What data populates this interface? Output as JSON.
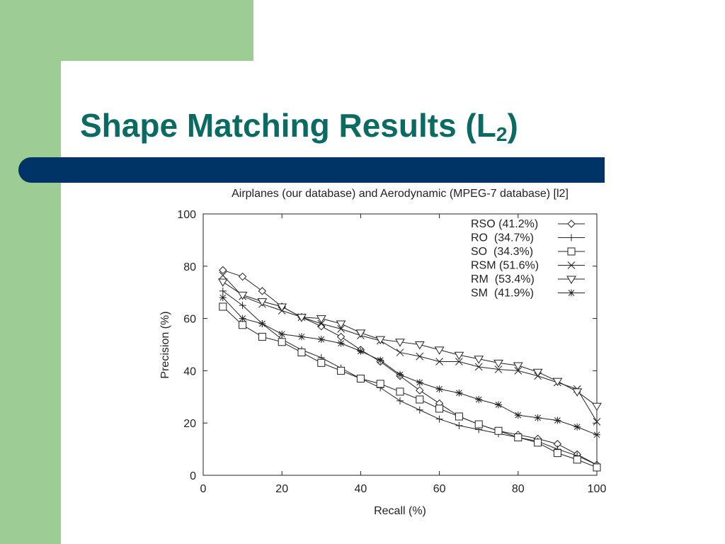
{
  "slide": {
    "title_main": "Shape Matching Results (L",
    "title_sub": "2",
    "title_close": ")",
    "colors": {
      "green": "#9dcc94",
      "title": "#0b6b63",
      "band": "#003366"
    }
  },
  "chart_data": {
    "type": "line",
    "title": "Airplanes (our database) and Aerodynamic (MPEG-7 database) [l2]",
    "xlabel": "Recall (%)",
    "ylabel": "Precision (%)",
    "xlim": [
      0,
      100
    ],
    "ylim": [
      0,
      100
    ],
    "xticks": [
      0,
      20,
      40,
      60,
      80,
      100
    ],
    "yticks": [
      0,
      20,
      40,
      60,
      80,
      100
    ],
    "grid": false,
    "legend_position": "top-right",
    "series": [
      {
        "name": "RSO (41.2%)",
        "marker": "diamond",
        "x": [
          5,
          10,
          15,
          20,
          25,
          30,
          35,
          40,
          45,
          50,
          55,
          60,
          65,
          70,
          75,
          80,
          85,
          90,
          95,
          100
        ],
        "y": [
          78.5,
          76,
          70.5,
          64.5,
          60.5,
          57,
          53,
          48,
          43.5,
          38,
          32.5,
          27.5,
          22.5,
          19.5,
          17,
          15.5,
          14,
          12,
          8,
          4
        ]
      },
      {
        "name": "RO  (34.7%)",
        "marker": "plus",
        "x": [
          5,
          10,
          15,
          20,
          25,
          30,
          35,
          40,
          45,
          50,
          55,
          60,
          65,
          70,
          75,
          80,
          85,
          90,
          95,
          100
        ],
        "y": [
          70.5,
          65,
          58,
          52,
          48,
          45,
          41,
          37,
          33.5,
          28.5,
          25,
          21.5,
          19,
          17.5,
          16,
          14.5,
          13,
          10,
          7.5,
          4
        ]
      },
      {
        "name": "SO  (34.3%)",
        "marker": "square",
        "x": [
          5,
          10,
          15,
          20,
          25,
          30,
          35,
          40,
          45,
          50,
          55,
          60,
          65,
          70,
          75,
          80,
          85,
          90,
          95,
          100
        ],
        "y": [
          64.5,
          57.5,
          53,
          51,
          47,
          43,
          40,
          37,
          35,
          32,
          29,
          25.5,
          22.5,
          19.5,
          17,
          14.5,
          12.5,
          8.5,
          6,
          3
        ]
      },
      {
        "name": "RSM (51.6%)",
        "marker": "cross",
        "x": [
          5,
          10,
          15,
          20,
          25,
          30,
          35,
          40,
          45,
          50,
          55,
          60,
          65,
          70,
          75,
          80,
          85,
          90,
          95,
          100
        ],
        "y": [
          76.5,
          68.5,
          65.5,
          63,
          60.5,
          58,
          56,
          53.5,
          51.5,
          47,
          45.5,
          43.5,
          43.5,
          41.5,
          40.5,
          40,
          38,
          35.5,
          33,
          20.5
        ]
      },
      {
        "name": "RM  (53.4%)",
        "marker": "triangle",
        "x": [
          5,
          10,
          15,
          20,
          25,
          30,
          35,
          40,
          45,
          50,
          55,
          60,
          65,
          70,
          75,
          80,
          85,
          90,
          95,
          100
        ],
        "y": [
          74,
          69,
          66.5,
          64.5,
          60.5,
          60,
          58,
          54.5,
          52,
          51,
          50,
          48,
          46,
          44.5,
          43,
          42,
          39.5,
          36,
          32,
          26.5
        ]
      },
      {
        "name": "SM  (41.9%)",
        "marker": "star",
        "x": [
          5,
          10,
          15,
          20,
          25,
          30,
          35,
          40,
          45,
          50,
          55,
          60,
          65,
          70,
          75,
          80,
          85,
          90,
          95,
          100
        ],
        "y": [
          68,
          60,
          58,
          54,
          53,
          52,
          50.5,
          47.5,
          44,
          38.5,
          35.5,
          33,
          31.5,
          29,
          27,
          23,
          22,
          21,
          18.5,
          15.5
        ]
      }
    ]
  }
}
